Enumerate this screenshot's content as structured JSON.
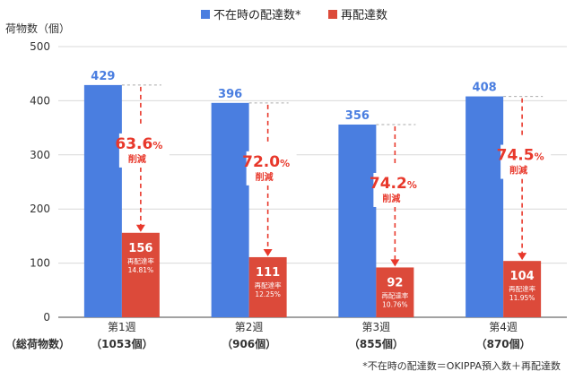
{
  "chart_data": {
    "type": "bar",
    "ylabel": "荷物数（個）",
    "ylim": [
      0,
      500
    ],
    "yticks": [
      0,
      100,
      200,
      300,
      400,
      500
    ],
    "grid": true,
    "legend_position": "top-center",
    "categories": [
      "第1週",
      "第2週",
      "第3週",
      "第4週"
    ],
    "category_totals": [
      "（1053個）",
      "（906個）",
      "（855個）",
      "（870個）"
    ],
    "total_row_label": "（総荷物数）",
    "series": [
      {
        "name": "不在時の配達数*",
        "color": "#4a7ee0",
        "values": [
          429,
          396,
          356,
          408
        ]
      },
      {
        "name": "再配達数",
        "color": "#dc4a3a",
        "values": [
          156,
          111,
          92,
          104
        ]
      }
    ],
    "redelivery_label": "再配達率",
    "redelivery_rates": [
      "14.81%",
      "12.25%",
      "10.76%",
      "11.95%"
    ],
    "reductions": [
      {
        "value": "63.6",
        "unit": "%",
        "label": "削減"
      },
      {
        "value": "72.0",
        "unit": "%",
        "label": "削減"
      },
      {
        "value": "74.2",
        "unit": "%",
        "label": "削減"
      },
      {
        "value": "74.5",
        "unit": "%",
        "label": "削減"
      }
    ],
    "footnote": "*不在時の配達数＝OKIPPA預入数＋再配達数",
    "annotation_color": "#e8382b",
    "axis_color": "#444444",
    "grid_color": "#d9d9d9"
  }
}
